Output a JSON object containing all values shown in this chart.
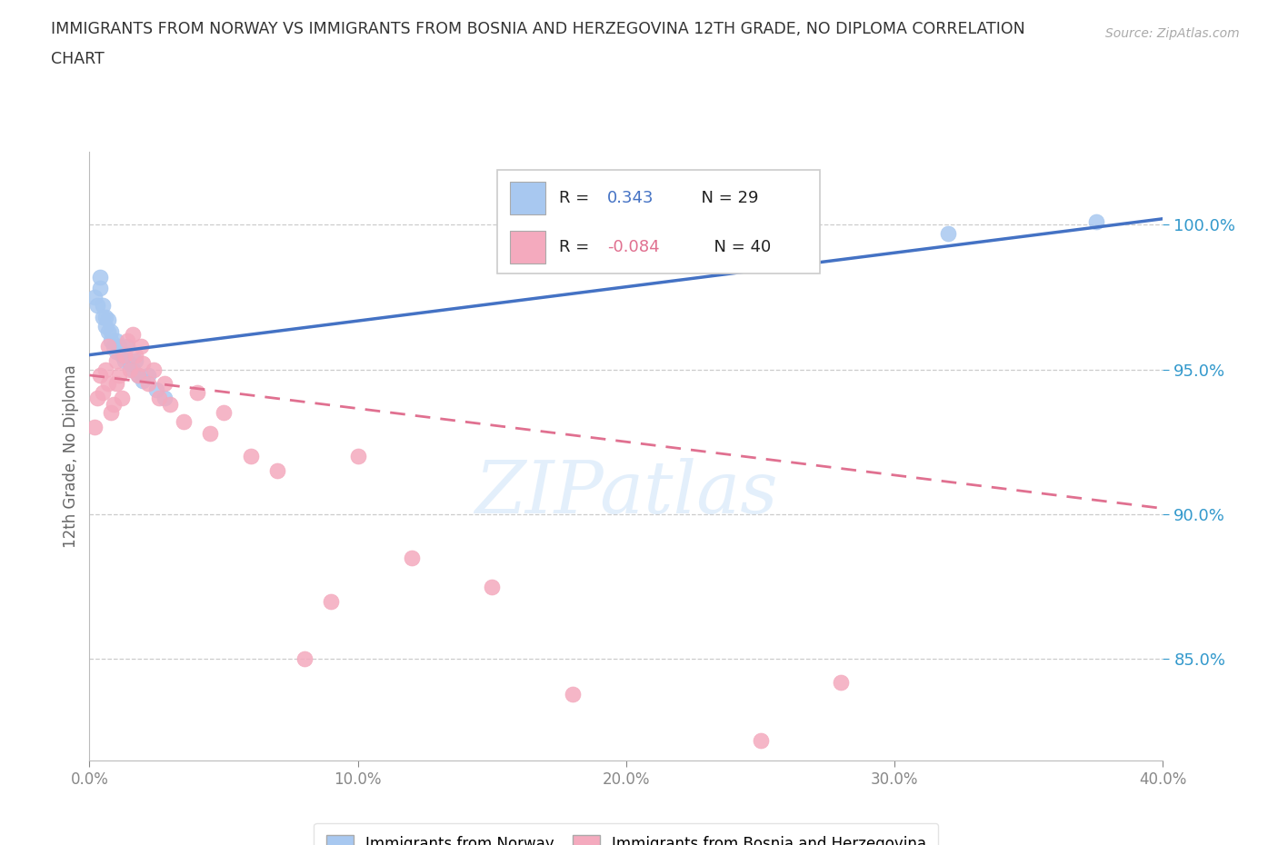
{
  "title_line1": "IMMIGRANTS FROM NORWAY VS IMMIGRANTS FROM BOSNIA AND HERZEGOVINA 12TH GRADE, NO DIPLOMA CORRELATION",
  "title_line2": "CHART",
  "source_text": "Source: ZipAtlas.com",
  "ylabel": "12th Grade, No Diploma",
  "legend_label1": "Immigrants from Norway",
  "legend_label2": "Immigrants from Bosnia and Herzegovina",
  "r1": 0.343,
  "n1": 29,
  "r2": -0.084,
  "n2": 40,
  "color1": "#A8C8F0",
  "color2": "#F4AABE",
  "trendline_color1": "#4472C4",
  "trendline_color2": "#E07090",
  "xlim": [
    0.0,
    0.4
  ],
  "ylim": [
    0.815,
    1.025
  ],
  "yticks": [
    0.85,
    0.9,
    0.95,
    1.0
  ],
  "ytick_labels": [
    "85.0%",
    "90.0%",
    "95.0%",
    "100.0%"
  ],
  "xticks": [
    0.0,
    0.1,
    0.2,
    0.3,
    0.4
  ],
  "xtick_labels": [
    "0.0%",
    "10.0%",
    "20.0%",
    "30.0%",
    "40.0%"
  ],
  "watermark": "ZIPatlas",
  "norway_x": [
    0.002,
    0.003,
    0.004,
    0.004,
    0.005,
    0.005,
    0.006,
    0.006,
    0.007,
    0.007,
    0.008,
    0.008,
    0.009,
    0.01,
    0.01,
    0.011,
    0.012,
    0.013,
    0.014,
    0.015,
    0.016,
    0.017,
    0.018,
    0.02,
    0.022,
    0.025,
    0.028,
    0.32,
    0.375
  ],
  "norway_y": [
    0.975,
    0.972,
    0.978,
    0.982,
    0.968,
    0.972,
    0.965,
    0.968,
    0.963,
    0.967,
    0.96,
    0.963,
    0.958,
    0.96,
    0.956,
    0.958,
    0.955,
    0.953,
    0.958,
    0.952,
    0.95,
    0.953,
    0.948,
    0.946,
    0.948,
    0.943,
    0.94,
    0.997,
    1.001
  ],
  "bosnia_x": [
    0.002,
    0.003,
    0.004,
    0.005,
    0.006,
    0.007,
    0.007,
    0.008,
    0.009,
    0.01,
    0.01,
    0.011,
    0.012,
    0.013,
    0.014,
    0.015,
    0.016,
    0.017,
    0.018,
    0.019,
    0.02,
    0.022,
    0.024,
    0.026,
    0.028,
    0.03,
    0.035,
    0.04,
    0.045,
    0.05,
    0.06,
    0.07,
    0.08,
    0.09,
    0.1,
    0.12,
    0.15,
    0.18,
    0.25,
    0.28
  ],
  "bosnia_y": [
    0.93,
    0.94,
    0.948,
    0.942,
    0.95,
    0.945,
    0.958,
    0.935,
    0.938,
    0.945,
    0.953,
    0.948,
    0.94,
    0.955,
    0.96,
    0.95,
    0.962,
    0.955,
    0.948,
    0.958,
    0.952,
    0.945,
    0.95,
    0.94,
    0.945,
    0.938,
    0.932,
    0.942,
    0.928,
    0.935,
    0.92,
    0.915,
    0.85,
    0.87,
    0.92,
    0.885,
    0.875,
    0.838,
    0.822,
    0.842
  ],
  "norway_trendline_x": [
    0.0,
    0.4
  ],
  "norway_trendline_y": [
    0.955,
    1.002
  ],
  "bosnia_trendline_x": [
    0.0,
    0.4
  ],
  "bosnia_trendline_y": [
    0.948,
    0.902
  ]
}
